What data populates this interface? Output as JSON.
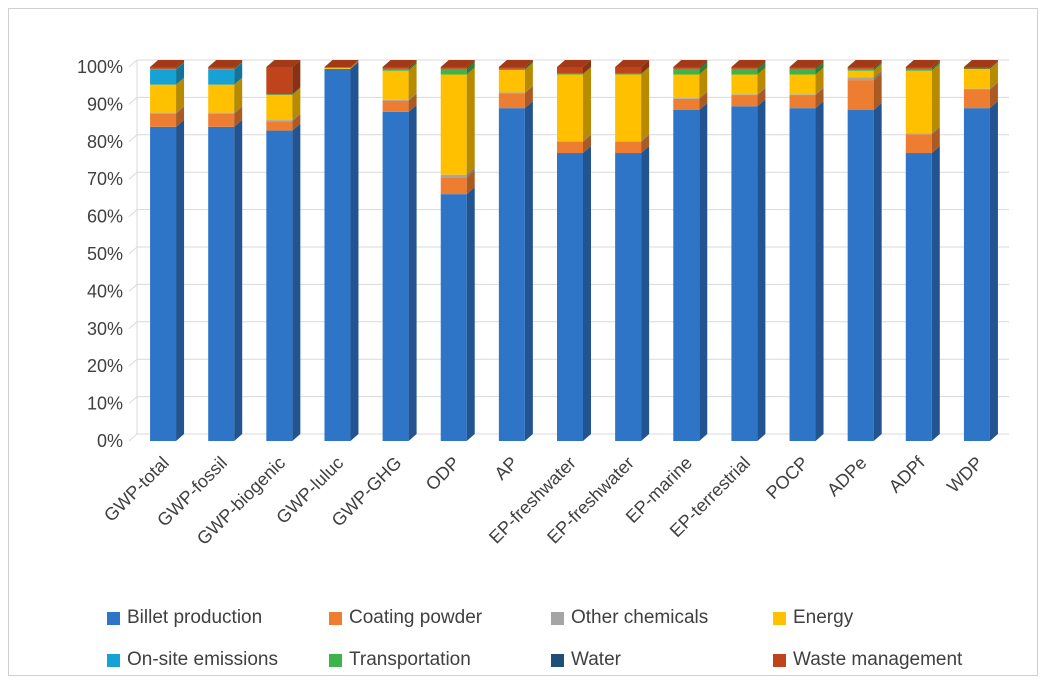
{
  "chart_data": {
    "type": "bar",
    "stacked": true,
    "percent": true,
    "categories": [
      "GWP-total",
      "GWP-fossil",
      "GWP-biogenic",
      "GWP-luluc",
      "GWP-GHG",
      "ODP",
      "AP",
      "EP-freshwater",
      "EP-freshwater",
      "EP-marine",
      "EP-terrestrial",
      "POCP",
      "ADPe",
      "ADPf",
      "WDP"
    ],
    "y_ticks": [
      "0%",
      "10%",
      "20%",
      "30%",
      "40%",
      "50%",
      "60%",
      "70%",
      "80%",
      "90%",
      "100%"
    ],
    "ylim": [
      0,
      100
    ],
    "grid": true,
    "legend_position": "bottom",
    "series": [
      {
        "name": "Billet production",
        "color": "#2E75C8",
        "values": [
          84,
          84,
          83,
          99.5,
          88,
          66,
          89,
          77,
          77,
          88.5,
          89.5,
          89,
          88.5,
          77,
          89
        ]
      },
      {
        "name": "Coating powder",
        "color": "#ED7D31",
        "values": [
          3.5,
          3.5,
          2.5,
          0,
          3,
          4.5,
          4,
          3,
          3,
          3,
          3,
          3.5,
          8,
          5,
          5
        ]
      },
      {
        "name": "Other chemicals",
        "color": "#A5A5A5",
        "values": [
          0.3,
          0.3,
          0.3,
          0,
          0.2,
          0.7,
          0.2,
          0.2,
          0.2,
          0.2,
          0.2,
          0.2,
          0.7,
          0.3,
          0.2
        ]
      },
      {
        "name": "Energy",
        "color": "#FFC000",
        "values": [
          7.5,
          7.5,
          6.7,
          0.3,
          7.8,
          26.8,
          6,
          17.8,
          17.8,
          6.3,
          5.3,
          5.3,
          1.8,
          16.7,
          5.3
        ]
      },
      {
        "name": "On-site emissions",
        "color": "#17A2D6",
        "values": [
          4,
          4,
          0,
          0,
          0,
          0,
          0,
          0,
          0,
          0,
          0,
          0,
          0,
          0,
          0
        ]
      },
      {
        "name": "Transportation",
        "color": "#3CB44B",
        "values": [
          0.2,
          0.2,
          0.2,
          0,
          0.5,
          1.5,
          0.3,
          0.2,
          0.2,
          1.5,
          1.5,
          1.5,
          0.5,
          0.5,
          0.1
        ]
      },
      {
        "name": "Water",
        "color": "#1F4E79",
        "values": [
          0,
          0,
          0,
          0,
          0,
          0,
          0,
          0,
          0,
          0,
          0,
          0,
          0,
          0,
          0
        ]
      },
      {
        "name": "Waste management",
        "color": "#C0441B",
        "values": [
          0.5,
          0.5,
          7.3,
          0.2,
          0.5,
          0.5,
          0.5,
          1.8,
          1.8,
          0.5,
          0.5,
          0.5,
          0.5,
          0.5,
          0.4
        ]
      }
    ]
  },
  "legend_rows": [
    [
      "Billet production",
      "Coating powder",
      "Other chemicals",
      "Energy"
    ],
    [
      "On-site emissions",
      "Transportation",
      "Water",
      "Waste management"
    ]
  ]
}
